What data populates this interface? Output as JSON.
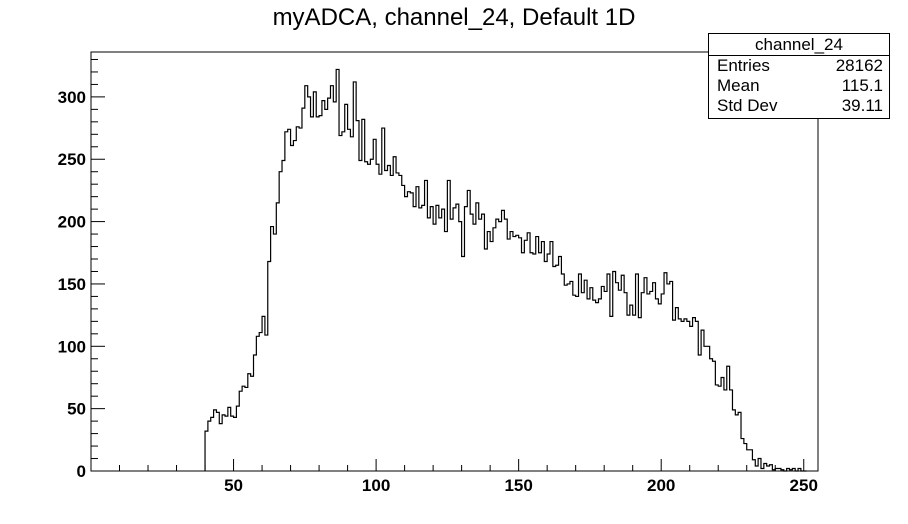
{
  "chart_data": {
    "type": "histogram",
    "title": "myADCA, channel_24, Default 1D",
    "xlabel": "",
    "ylabel": "",
    "xlim": [
      0,
      255
    ],
    "ylim": [
      0,
      336
    ],
    "x_ticks": [
      50,
      100,
      150,
      200,
      250
    ],
    "y_ticks": [
      0,
      50,
      100,
      150,
      200,
      250,
      300
    ],
    "grid": false,
    "bin_width": 1,
    "x_start": 40,
    "values": [
      32,
      40,
      43,
      49,
      47,
      38,
      45,
      44,
      51,
      44,
      43,
      52,
      64,
      68,
      67,
      78,
      76,
      93,
      108,
      111,
      124,
      109,
      168,
      196,
      190,
      215,
      240,
      249,
      272,
      274,
      261,
      265,
      276,
      275,
      291,
      309,
      300,
      284,
      304,
      284,
      285,
      297,
      290,
      299,
      309,
      296,
      322,
      269,
      272,
      294,
      274,
      268,
      312,
      281,
      249,
      282,
      248,
      246,
      250,
      266,
      246,
      238,
      275,
      241,
      245,
      237,
      252,
      239,
      237,
      229,
      220,
      224,
      223,
      212,
      228,
      211,
      213,
      233,
      203,
      212,
      198,
      213,
      203,
      210,
      192,
      233,
      202,
      211,
      214,
      200,
      172,
      212,
      225,
      206,
      198,
      215,
      202,
      206,
      178,
      192,
      184,
      195,
      202,
      200,
      209,
      202,
      186,
      192,
      188,
      189,
      187,
      175,
      185,
      191,
      175,
      174,
      188,
      175,
      184,
      168,
      174,
      184,
      164,
      165,
      172,
      158,
      149,
      150,
      152,
      141,
      140,
      158,
      143,
      153,
      138,
      147,
      137,
      135,
      138,
      148,
      144,
      158,
      124,
      160,
      151,
      145,
      157,
      143,
      125,
      133,
      125,
      158,
      123,
      143,
      155,
      142,
      144,
      151,
      138,
      134,
      142,
      159,
      150,
      152,
      121,
      131,
      122,
      120,
      122,
      120,
      116,
      123,
      120,
      93,
      113,
      100,
      100,
      90,
      88,
      69,
      68,
      75,
      65,
      84,
      65,
      49,
      45,
      47,
      26,
      22,
      17,
      17,
      9,
      4,
      10,
      2,
      6,
      4,
      5,
      1,
      2,
      2,
      1,
      0,
      2,
      1,
      2,
      0,
      2,
      0,
      0
    ],
    "stats": {
      "name": "channel_24",
      "entries_label": "Entries",
      "entries": "28162",
      "mean_label": "Mean",
      "mean": "115.1",
      "stddev_label": "Std Dev",
      "stddev": "39.11"
    },
    "colors": {
      "line": "#000000",
      "background": "#ffffff"
    }
  }
}
